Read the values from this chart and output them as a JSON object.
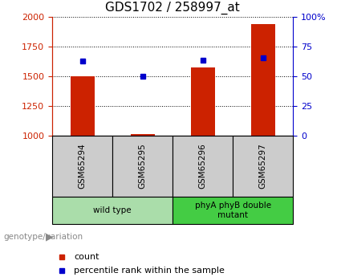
{
  "title": "GDS1702 / 258997_at",
  "samples": [
    "GSM65294",
    "GSM65295",
    "GSM65296",
    "GSM65297"
  ],
  "bar_values": [
    1500,
    1012,
    1570,
    1940
  ],
  "bar_bottom": 1000,
  "percentile_values": [
    1630,
    1500,
    1633,
    1655
  ],
  "ylim_left": [
    1000,
    2000
  ],
  "ylim_right": [
    0,
    100
  ],
  "yticks_left": [
    1000,
    1250,
    1500,
    1750,
    2000
  ],
  "yticks_right": [
    0,
    25,
    50,
    75,
    100
  ],
  "ytick_right_labels": [
    "0",
    "25",
    "50",
    "75",
    "100%"
  ],
  "bar_color": "#cc2200",
  "square_color": "#0000cc",
  "groups": [
    {
      "label": "wild type",
      "indices": [
        0,
        1
      ],
      "color": "#aaddaa"
    },
    {
      "label": "phyA phyB double\nmutant",
      "indices": [
        2,
        3
      ],
      "color": "#44cc44"
    }
  ],
  "genotype_label": "genotype/variation",
  "legend_count_label": "count",
  "legend_pct_label": "percentile rank within the sample",
  "sample_box_color": "#cccccc",
  "title_fontsize": 11,
  "tick_fontsize": 8
}
